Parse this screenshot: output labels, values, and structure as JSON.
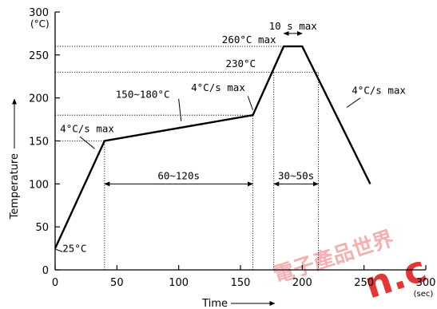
{
  "chart_data": {
    "type": "line",
    "title": "",
    "xlabel": "Time",
    "ylabel": "Temperature",
    "x_unit": "(sec)",
    "y_unit": "(°C)",
    "xlim": [
      0,
      300
    ],
    "ylim": [
      0,
      300
    ],
    "x_ticks": [
      0,
      50,
      100,
      150,
      200,
      250,
      300
    ],
    "y_ticks": [
      0,
      50,
      100,
      150,
      200,
      250,
      300
    ],
    "grid": false,
    "series": [
      {
        "points": [
          {
            "x": 0,
            "y": 25
          },
          {
            "x": 40,
            "y": 150
          },
          {
            "x": 160,
            "y": 180
          },
          {
            "x": 185,
            "y": 260
          },
          {
            "x": 200,
            "y": 260
          },
          {
            "x": 255,
            "y": 100
          }
        ]
      }
    ],
    "reference_lines": [
      {
        "axis": "y",
        "value": 260,
        "x_from": 0,
        "x_to": 185
      },
      {
        "axis": "y",
        "value": 230,
        "x_from": 0,
        "x_to": 213
      },
      {
        "axis": "y",
        "value": 180,
        "x_from": 0,
        "x_to": 160
      },
      {
        "axis": "y",
        "value": 150,
        "x_from": 0,
        "x_to": 40
      },
      {
        "axis": "x",
        "value": 40,
        "y_from": 0,
        "y_to": 150
      },
      {
        "axis": "x",
        "value": 160,
        "y_from": 0,
        "y_to": 180
      },
      {
        "axis": "x",
        "value": 177,
        "y_from": 0,
        "y_to": 230
      },
      {
        "axis": "x",
        "value": 213,
        "y_from": 0,
        "y_to": 230
      }
    ],
    "intervals": [
      {
        "label": "60~120s",
        "x_from": 40,
        "x_to": 160,
        "y": 100
      },
      {
        "label": "30~50s",
        "x_from": 177,
        "x_to": 213,
        "y": 100
      },
      {
        "label": "10 s max",
        "x_from": 185,
        "x_to": 200,
        "y": 275
      }
    ],
    "annotations": [
      {
        "text": "25°C",
        "x": 6,
        "y": 21
      },
      {
        "text": "4°C/s max",
        "x": 4,
        "y": 160
      },
      {
        "text": "150~180°C",
        "x": 49,
        "y": 200
      },
      {
        "text": "4°C/s max",
        "x": 110,
        "y": 208
      },
      {
        "text": "230°C",
        "x": 138,
        "y": 236
      },
      {
        "text": "260°C max",
        "x": 135,
        "y": 264
      },
      {
        "text": "4°C/s max",
        "x": 240,
        "y": 205
      }
    ]
  },
  "watermark": {
    "text": "n.c",
    "cjk": "電子產品世界",
    "color": "#e02020"
  }
}
